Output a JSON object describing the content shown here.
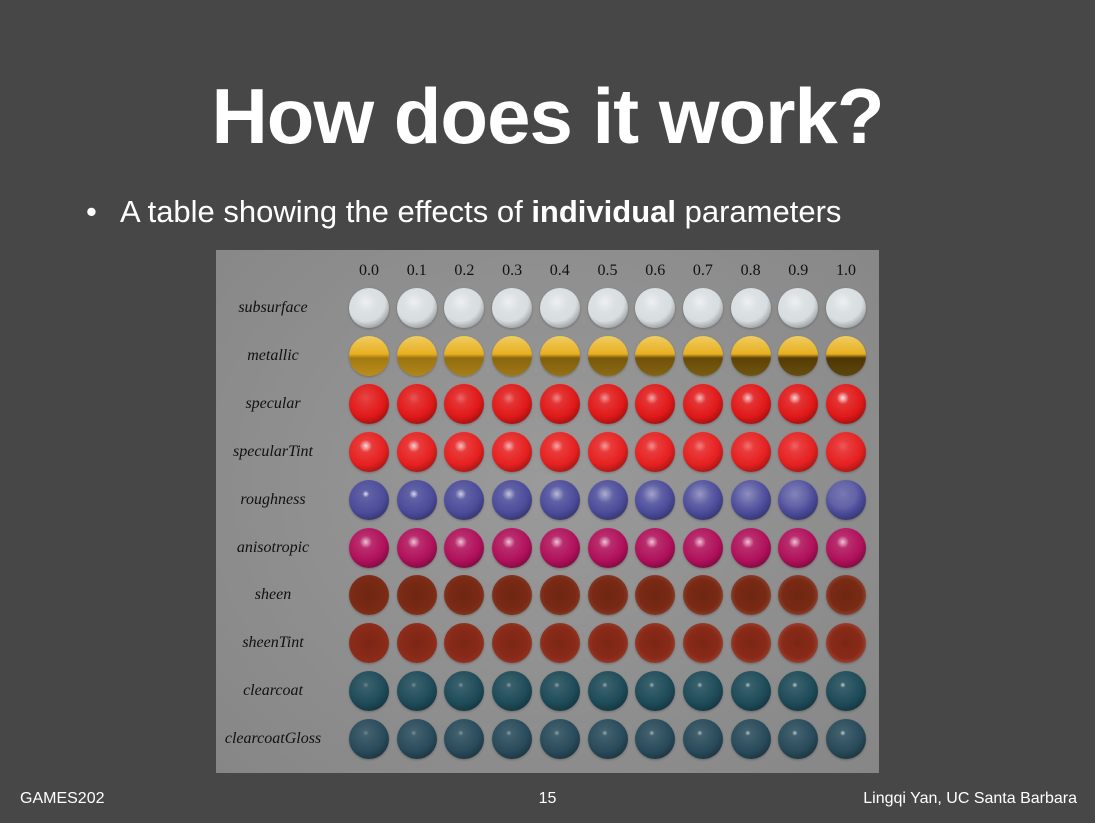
{
  "slide": {
    "title": "How does it work?",
    "bullet_symbol": "•",
    "bullet_prefix": "A table showing the effects of ",
    "bullet_bold": "individual",
    "bullet_suffix": " parameters"
  },
  "figure": {
    "columns": [
      "0.0",
      "0.1",
      "0.2",
      "0.3",
      "0.4",
      "0.5",
      "0.6",
      "0.7",
      "0.8",
      "0.9",
      "1.0"
    ],
    "rows": [
      {
        "label": "subsurface",
        "color": "#d7dde0"
      },
      {
        "label": "metallic",
        "color": "#e8b020"
      },
      {
        "label": "specular",
        "color": "#e01818"
      },
      {
        "label": "specularTint",
        "color": "#e62020"
      },
      {
        "label": "roughness",
        "color": "#4b4b9a"
      },
      {
        "label": "anisotropic",
        "color": "#b0105a"
      },
      {
        "label": "sheen",
        "color": "#7a2a14"
      },
      {
        "label": "sheenTint",
        "color": "#8a2a18"
      },
      {
        "label": "clearcoat",
        "color": "#1e4a58"
      },
      {
        "label": "clearcoatGloss",
        "color": "#284a5a"
      }
    ]
  },
  "footer": {
    "left": "GAMES202",
    "page": "15",
    "right": "Lingqi Yan, UC Santa Barbara"
  }
}
